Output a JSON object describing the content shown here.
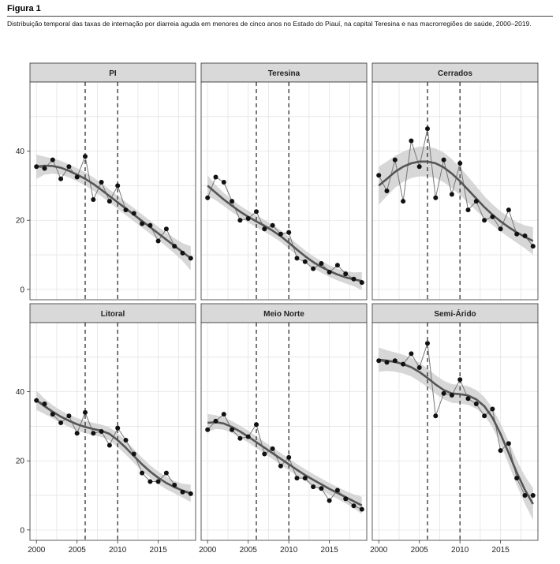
{
  "figure": {
    "label": "Figura 1",
    "caption": "Distribuição temporal das taxas de internação por diarreia aguda em menores de cinco anos no Estado do Piauí, na capital Teresina e nas macrorregiões de saúde, 2000–2019."
  },
  "style": {
    "panel_bg": "#ffffff",
    "grid": "#e4e4e4",
    "strip_bg": "#d9d9d9",
    "border": "#333333",
    "line": "#555555",
    "point": "#111111",
    "ci_band": "#d0d0d0",
    "trend": "#555555",
    "vline": "#222222"
  },
  "chart_data": {
    "type": "line",
    "facets": 6,
    "layout": "2x3",
    "x_ticks": [
      2000,
      2005,
      2010,
      2015
    ],
    "y_ticks": [
      0,
      20,
      40
    ],
    "xlim": [
      1999.2,
      2019.6
    ],
    "ylim": [
      -3,
      60
    ],
    "grid": true,
    "vlines": [
      2006,
      2010
    ],
    "panels": [
      {
        "name": "PI",
        "x": [
          2000,
          2001,
          2002,
          2003,
          2004,
          2005,
          2006,
          2007,
          2008,
          2009,
          2010,
          2011,
          2012,
          2013,
          2014,
          2015,
          2016,
          2017,
          2018,
          2019
        ],
        "y": [
          35.5,
          35,
          37.5,
          32,
          35.5,
          32.5,
          38.5,
          26,
          31,
          25.5,
          30,
          23,
          22,
          19,
          18.5,
          14,
          17.5,
          12.5,
          10.5,
          9
        ],
        "trend": [
          35.5,
          35.8,
          35.7,
          35.2,
          34.3,
          33.2,
          32.0,
          30.5,
          28.8,
          27.0,
          25.2,
          23.4,
          21.6,
          19.8,
          18.0,
          16.2,
          14.4,
          12.6,
          10.8,
          9.0
        ],
        "ci_halfwidth": [
          3.5,
          2.6,
          2.2,
          2.0,
          1.9,
          1.9,
          1.9,
          1.9,
          1.9,
          1.9,
          1.9,
          1.9,
          1.9,
          1.9,
          1.9,
          1.9,
          2.0,
          2.2,
          2.6,
          3.5
        ]
      },
      {
        "name": "Teresina",
        "x": [
          2000,
          2001,
          2002,
          2003,
          2004,
          2005,
          2006,
          2007,
          2008,
          2009,
          2010,
          2011,
          2012,
          2013,
          2014,
          2015,
          2016,
          2017,
          2018,
          2019
        ],
        "y": [
          26.5,
          32.5,
          31,
          25.5,
          20,
          20.5,
          22.5,
          17.5,
          18.5,
          16,
          16.5,
          9,
          8,
          6,
          7.5,
          5,
          7,
          4.5,
          3,
          2
        ],
        "trend": [
          30,
          28,
          26,
          24.2,
          22.5,
          21,
          19.7,
          18.4,
          17.0,
          15.4,
          13.5,
          11.5,
          9.6,
          7.9,
          6.5,
          5.3,
          4.3,
          3.5,
          2.9,
          2.4
        ],
        "ci_halfwidth": [
          3.0,
          2.2,
          1.9,
          1.8,
          1.7,
          1.7,
          1.7,
          1.7,
          1.7,
          1.7,
          1.7,
          1.7,
          1.7,
          1.7,
          1.7,
          1.7,
          1.7,
          1.8,
          2.0,
          2.6
        ]
      },
      {
        "name": "Cerrados",
        "x": [
          2000,
          2001,
          2002,
          2003,
          2004,
          2005,
          2006,
          2007,
          2008,
          2009,
          2010,
          2011,
          2012,
          2013,
          2014,
          2015,
          2016,
          2017,
          2018,
          2019
        ],
        "y": [
          33,
          28.5,
          37.5,
          25.5,
          43,
          35.5,
          46.5,
          26.5,
          37.5,
          27.5,
          36.5,
          23,
          25.5,
          20,
          21,
          17.5,
          23,
          16,
          15.5,
          12.5
        ],
        "trend": [
          30,
          32,
          34,
          35.5,
          36.5,
          37,
          37,
          36.5,
          35.3,
          33.5,
          31.3,
          28.8,
          26.3,
          23.8,
          21.6,
          19.7,
          18.0,
          16.5,
          15.2,
          14.0
        ],
        "ci_halfwidth": [
          5.5,
          5.0,
          4.6,
          4.4,
          4.3,
          4.3,
          4.3,
          4.3,
          4.3,
          4.2,
          4.0,
          3.8,
          3.5,
          3.2,
          3.0,
          2.9,
          2.9,
          3.0,
          3.3,
          4.0
        ]
      },
      {
        "name": "Litoral",
        "x": [
          2000,
          2001,
          2002,
          2003,
          2004,
          2005,
          2006,
          2007,
          2008,
          2009,
          2010,
          2011,
          2012,
          2013,
          2014,
          2015,
          2016,
          2017,
          2018,
          2019
        ],
        "y": [
          37.5,
          36.5,
          33.5,
          31,
          33,
          28,
          34,
          28,
          28.5,
          24.5,
          29.5,
          26,
          22,
          16.5,
          14,
          14,
          16.5,
          13,
          11,
          10.5
        ],
        "trend": [
          37.5,
          35.8,
          34.2,
          32.8,
          31.6,
          30.6,
          29.8,
          29.2,
          28.7,
          27.8,
          26,
          23.8,
          21.4,
          19.0,
          16.9,
          15.1,
          13.6,
          12.4,
          11.4,
          10.6
        ],
        "ci_halfwidth": [
          2.8,
          2.2,
          1.9,
          1.8,
          1.8,
          1.8,
          1.8,
          1.8,
          1.8,
          1.9,
          2.0,
          2.0,
          2.0,
          1.9,
          1.8,
          1.8,
          1.8,
          1.8,
          2.0,
          2.5
        ]
      },
      {
        "name": "Meio Norte",
        "x": [
          2000,
          2001,
          2002,
          2003,
          2004,
          2005,
          2006,
          2007,
          2008,
          2009,
          2010,
          2011,
          2012,
          2013,
          2014,
          2015,
          2016,
          2017,
          2018,
          2019
        ],
        "y": [
          29,
          31.5,
          33.5,
          29,
          26.5,
          27,
          30.5,
          22,
          23.5,
          18.5,
          21,
          15,
          15,
          12.5,
          12,
          8.5,
          11.5,
          9,
          7,
          6
        ],
        "trend": [
          31,
          31.2,
          30.8,
          29.8,
          28.5,
          27.0,
          25.4,
          23.8,
          22.2,
          20.6,
          19.0,
          17.4,
          15.9,
          14.5,
          13.2,
          11.9,
          10.7,
          9.5,
          8.3,
          7.1
        ],
        "ci_halfwidth": [
          2.6,
          2.0,
          1.8,
          1.7,
          1.7,
          1.7,
          1.7,
          1.7,
          1.7,
          1.7,
          1.7,
          1.7,
          1.7,
          1.7,
          1.7,
          1.7,
          1.7,
          1.8,
          2.0,
          2.5
        ]
      },
      {
        "name": "Semi-Árido",
        "x": [
          2000,
          2001,
          2002,
          2003,
          2004,
          2005,
          2006,
          2007,
          2008,
          2009,
          2010,
          2011,
          2012,
          2013,
          2014,
          2015,
          2016,
          2017,
          2018,
          2019
        ],
        "y": [
          49,
          48.5,
          49,
          48,
          51,
          47,
          54,
          33,
          39.5,
          39,
          43.5,
          38,
          36.5,
          33,
          35,
          23,
          25,
          15,
          10,
          10
        ],
        "trend": [
          49.3,
          49,
          48.6,
          48,
          47.1,
          45.7,
          44,
          42.1,
          40.5,
          39.5,
          39.3,
          38.9,
          37.8,
          35.8,
          32.5,
          27.8,
          22.3,
          16.6,
          11.6,
          7.5
        ],
        "ci_halfwidth": [
          3.5,
          3.0,
          2.8,
          2.7,
          2.7,
          2.7,
          2.7,
          2.7,
          2.7,
          2.7,
          2.7,
          2.7,
          2.7,
          2.7,
          2.8,
          3.0,
          3.3,
          3.6,
          4.0,
          4.6
        ]
      }
    ]
  }
}
